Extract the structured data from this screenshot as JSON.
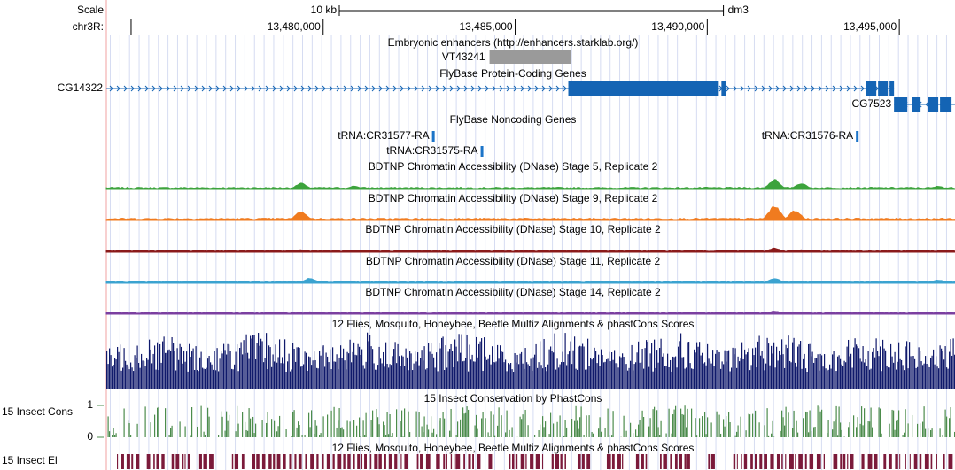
{
  "header": {
    "scale_label": "Scale",
    "scale_bar": {
      "label": "10 kb",
      "length": 10000
    },
    "assembly": "dm3",
    "chrom_label": "chr3R:"
  },
  "xlim": [
    13474355,
    13496450
  ],
  "xticks": [
    {
      "value": 13475000,
      "label": null
    },
    {
      "value": 13480000,
      "label": "13,480,000"
    },
    {
      "value": 13485000,
      "label": "13,485,000"
    },
    {
      "value": 13490000,
      "label": "13,490,000"
    },
    {
      "value": 13495000,
      "label": "13,495,000"
    }
  ],
  "tracks": [
    {
      "title": "Embryonic enhancers (http://enhancers.starklab.org/)",
      "color": "#9a9a9a",
      "features": [
        {
          "name": "VT43241",
          "start": 13484332,
          "end": 13486452
        }
      ]
    },
    {
      "title": "FlyBase Protein-Coding Genes",
      "color": "#1464b4",
      "genes": [
        {
          "name": "CG14322",
          "strand": "+",
          "start": 13474355,
          "end": 13494862,
          "blocks": [
            [
              13486383,
              13490300
            ],
            [
              13490369,
              13490484
            ],
            [
              13494125,
              13494401
            ],
            [
              13494447,
              13494701
            ],
            [
              13494747,
              13494862
            ]
          ]
        },
        {
          "name": "CG7523",
          "strand": "-",
          "start": 13494862,
          "end": 13496450,
          "blocks": [
            [
              13494862,
              13495208
            ],
            [
              13495323,
              13495553
            ],
            [
              13495737,
              13496014
            ],
            [
              13496060,
              13496360
            ]
          ]
        }
      ]
    },
    {
      "title": "FlyBase Noncoding Genes",
      "color": "#1c74c8",
      "genes": [
        {
          "name": "tRNA:CR31577-RA",
          "start": 13482834,
          "end": 13482903
        },
        {
          "name": "tRNA:CR31575-RA",
          "start": 13484101,
          "end": 13484170
        },
        {
          "name": "tRNA:CR31576-RA",
          "start": 13493871,
          "end": 13493940
        }
      ]
    },
    {
      "title": "BDTNP Chromatin Accessibility (DNase) Stage 5, Replicate 2",
      "color": "#3ca33c",
      "peaks": [
        [
          13479424,
          0.35
        ],
        [
          13480807,
          0.2
        ],
        [
          13491751,
          0.55
        ],
        [
          13492443,
          0.35
        ],
        [
          13494631,
          0.1
        ],
        [
          13496014,
          0.2
        ]
      ]
    },
    {
      "title": "BDTNP Chromatin Accessibility (DNase) Stage 9, Replicate 2",
      "color": "#f07b1f",
      "peaks": [
        [
          13479424,
          0.5
        ],
        [
          13486567,
          0.1
        ],
        [
          13491751,
          0.8
        ],
        [
          13492281,
          0.55
        ]
      ]
    },
    {
      "title": "BDTNP Chromatin Accessibility (DNase) Stage 10, Replicate 2",
      "color": "#8b1a1a",
      "peaks": [
        [
          13479424,
          0.15
        ],
        [
          13485415,
          0.1
        ],
        [
          13491751,
          0.25
        ],
        [
          13492443,
          0.15
        ]
      ]
    },
    {
      "title": "BDTNP Chromatin Accessibility (DNase) Stage 11, Replicate 2",
      "color": "#3ba3d0",
      "peaks": [
        [
          13479655,
          0.3
        ],
        [
          13491751,
          0.3
        ],
        [
          13496014,
          0.2
        ]
      ]
    },
    {
      "title": "BDTNP Chromatin Accessibility (DNase) Stage 14, Replicate 2",
      "color": "#7b3fa0",
      "peaks": [
        [
          13479655,
          0.15
        ],
        [
          13491751,
          0.2
        ],
        [
          13492443,
          0.15
        ]
      ]
    },
    {
      "title": "12 Flies, Mosquito, Honeybee, Beetle Multiz Alignments & phastCons Scores",
      "color": "#101a6b"
    },
    {
      "title": "15 Insect Conservation by PhastCons",
      "label": "15 Insect Cons",
      "yticks": [
        1,
        0
      ],
      "color": "#4c8c4c"
    },
    {
      "title": "12 Flies, Mosquito, Honeybee, Beetle Multiz Alignments & phastCons Scores",
      "label": "15 Insect El",
      "color": "#7b1a3a"
    }
  ]
}
